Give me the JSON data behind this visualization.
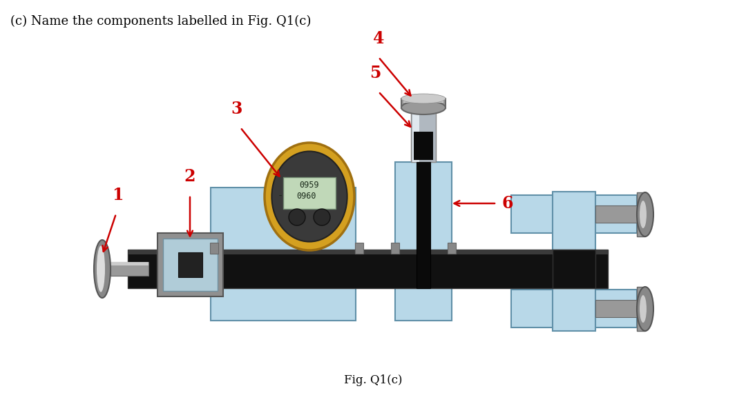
{
  "title_text": "(c) Name the components labelled in Fig. Q1(c)",
  "caption": "Fig. Q1(c)",
  "bg_color": "#ffffff",
  "title_fontsize": 13,
  "caption_fontsize": 12,
  "label_color": "#cc0000",
  "label_fontsize": 17,
  "pipe_color": "#111111",
  "pipe_color2": "#222222",
  "flange_color": "#aaaaaa",
  "flange_mid": "#888888",
  "flange_light": "#dddddd",
  "tube_bg": "#b8d8e8",
  "tube_border": "#6090a8",
  "sensor_gold": "#d4a020",
  "sensor_gold_dark": "#a07010",
  "sensor_grey": "#555555",
  "sensor_screen": "#c0d8b8",
  "cap_grey": "#999999",
  "cap_light": "#cccccc",
  "silver_tube": "#b0b8c0",
  "silver_tube_light": "#e0e8ee",
  "junction_grey": "#909090",
  "junction_blue": "#b0ccd8"
}
